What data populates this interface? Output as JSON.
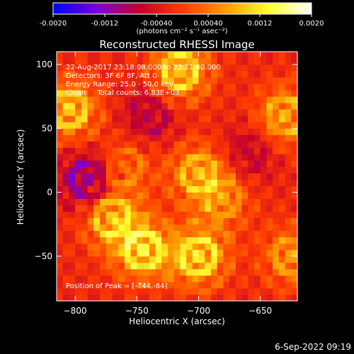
{
  "colorbar": {
    "ticks": [
      "-0.0020",
      "-0.0012",
      "-0.00040",
      "0.00040",
      "0.0012",
      "0.0020"
    ],
    "tick_values": [
      -0.002,
      -0.0012,
      -0.0004,
      0.0004,
      0.0012,
      0.002
    ],
    "range": [
      -0.002,
      0.002
    ],
    "unit_label": "(photons cm⁻² s⁻¹ asec⁻²)",
    "stops": [
      "#0000ff",
      "#7a00d8",
      "#c2002e",
      "#ff3a00",
      "#ff9a00",
      "#ffff30",
      "#ffffff"
    ]
  },
  "chart_data": {
    "type": "heatmap",
    "title": "Reconstructed RHESSI Image",
    "xlabel": "Heliocentric X (arcsec)",
    "ylabel": "Heliocentric Y (arcsec)",
    "xlim": [
      -815,
      -620
    ],
    "ylim": [
      -85,
      110
    ],
    "x_ticks": [
      -800,
      -750,
      -700,
      -650
    ],
    "y_ticks": [
      100,
      50,
      0,
      -50
    ],
    "x_tick_labels": [
      "−800",
      "−750",
      "−700",
      "−650"
    ],
    "y_tick_labels": [
      "100",
      "50",
      "0",
      "−50"
    ],
    "annotations": [
      "22-Aug-2017 23:18:08.000 to 23:21:40.000",
      "Detectors: 3F 6F 8F, Att 0",
      "Energy Range: 25.0 - 50.0 keV",
      "Clean     Total counts: 6.83E+03"
    ],
    "peak_label": "Position of Peak = [-744,-84]",
    "peak": [
      -744,
      -84
    ],
    "blobs": [
      {
        "x": -745,
        "y": -45,
        "value": 0.0019
      },
      {
        "x": -700,
        "y": -50,
        "value": 0.0019
      },
      {
        "x": -770,
        "y": -20,
        "value": 0.0016
      },
      {
        "x": -805,
        "y": 65,
        "value": 0.0017
      },
      {
        "x": -715,
        "y": 95,
        "value": 0.0018
      },
      {
        "x": -700,
        "y": 15,
        "value": 0.0014
      },
      {
        "x": -630,
        "y": 60,
        "value": 0.0014
      },
      {
        "x": -680,
        "y": -5,
        "value": 0.001
      },
      {
        "x": -625,
        "y": -50,
        "value": 0.0012
      },
      {
        "x": -760,
        "y": 20,
        "value": 0.0009
      },
      {
        "x": -790,
        "y": 10,
        "value": -0.0014
      },
      {
        "x": -740,
        "y": 60,
        "value": -0.0008
      },
      {
        "x": -660,
        "y": 30,
        "value": -0.0007
      }
    ]
  },
  "footer": {
    "timestamp": "6-Sep-2022 09:19"
  }
}
